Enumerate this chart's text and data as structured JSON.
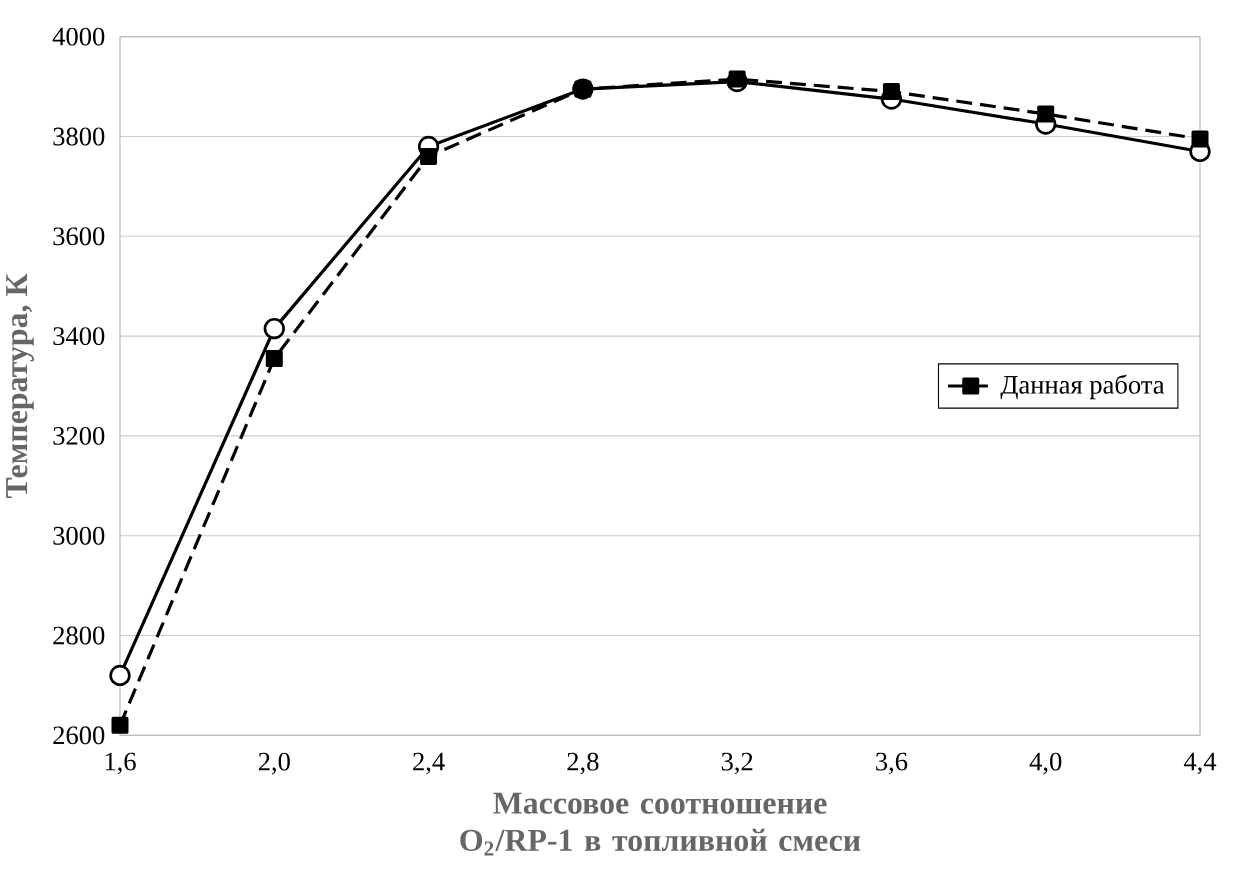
{
  "chart_data": {
    "type": "line",
    "xlabel": "Массовое соотношение O$_{2}$/RP-1 в топливной смеси",
    "ylabel": "Температура, К",
    "x": [
      1.6,
      2.0,
      2.4,
      2.8,
      3.2,
      3.6,
      4.0,
      4.4
    ],
    "series": [
      {
        "color": "#000000",
        "marker": "circle",
        "line_style": "solid",
        "values": [
          2720,
          3415,
          3780,
          3895,
          3910,
          3875,
          3825,
          3770
        ]
      },
      {
        "name": "Данная работа",
        "color": "#000000",
        "marker": "square",
        "line_style": "dashed",
        "values": [
          2620,
          3355,
          3760,
          3895,
          3915,
          3890,
          3845,
          3795
        ]
      }
    ],
    "xlim": [
      1.6,
      4.4
    ],
    "xticks": [
      {
        "value": 1.6,
        "label": "1,6"
      },
      {
        "value": 2.0,
        "label": "2,0"
      },
      {
        "value": 2.4,
        "label": "2,4"
      },
      {
        "value": 2.8,
        "label": "2,8"
      },
      {
        "value": 3.2,
        "label": "3,2"
      },
      {
        "value": 3.6,
        "label": "3,6"
      },
      {
        "value": 4.0,
        "label": "4,0"
      },
      {
        "value": 4.4,
        "label": "4,4"
      }
    ],
    "ylim": [
      2600,
      4000
    ],
    "yticks": [
      2600,
      2800,
      3000,
      3200,
      3400,
      3600,
      3800,
      4000
    ],
    "grid": "y",
    "legend": "right"
  }
}
